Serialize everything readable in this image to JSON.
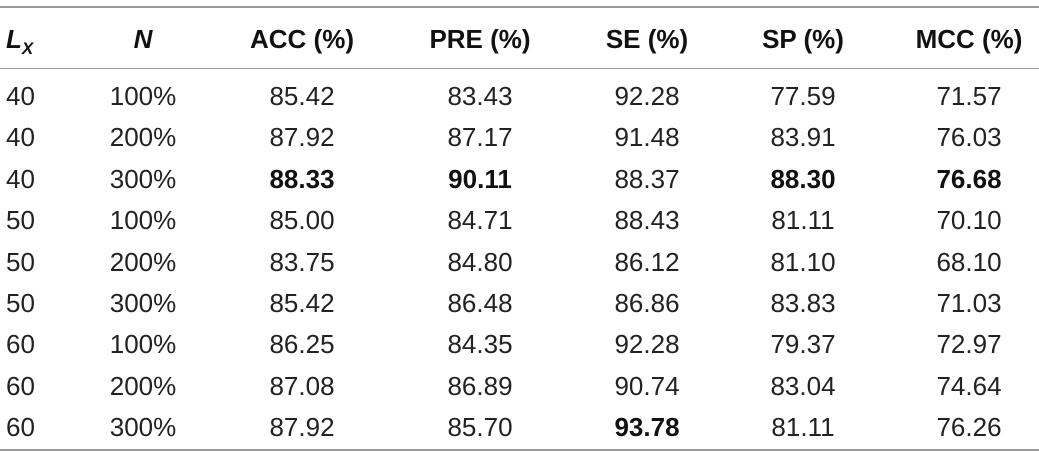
{
  "table": {
    "headers": {
      "lx_main": "L",
      "lx_sub": "X",
      "n": "N",
      "acc": "ACC (%)",
      "pre": "PRE (%)",
      "se": "SE (%)",
      "sp": "SP (%)",
      "mcc": "MCC (%)"
    },
    "rows": [
      {
        "lx": "40",
        "n": "100%",
        "acc": "85.42",
        "pre": "83.43",
        "se": "92.28",
        "sp": "77.59",
        "mcc": "71.57"
      },
      {
        "lx": "40",
        "n": "200%",
        "acc": "87.92",
        "pre": "87.17",
        "se": "91.48",
        "sp": "83.91",
        "mcc": "76.03"
      },
      {
        "lx": "40",
        "n": "300%",
        "acc": "88.33",
        "pre": "90.11",
        "se": "88.37",
        "sp": "88.30",
        "mcc": "76.68"
      },
      {
        "lx": "50",
        "n": "100%",
        "acc": "85.00",
        "pre": "84.71",
        "se": "88.43",
        "sp": "81.11",
        "mcc": "70.10"
      },
      {
        "lx": "50",
        "n": "200%",
        "acc": "83.75",
        "pre": "84.80",
        "se": "86.12",
        "sp": "81.10",
        "mcc": "68.10"
      },
      {
        "lx": "50",
        "n": "300%",
        "acc": "85.42",
        "pre": "86.48",
        "se": "86.86",
        "sp": "83.83",
        "mcc": "71.03"
      },
      {
        "lx": "60",
        "n": "100%",
        "acc": "86.25",
        "pre": "84.35",
        "se": "92.28",
        "sp": "79.37",
        "mcc": "72.97"
      },
      {
        "lx": "60",
        "n": "200%",
        "acc": "87.08",
        "pre": "86.89",
        "se": "90.74",
        "sp": "83.04",
        "mcc": "74.64"
      },
      {
        "lx": "60",
        "n": "300%",
        "acc": "87.92",
        "pre": "85.70",
        "se": "93.78",
        "sp": "81.11",
        "mcc": "76.26"
      }
    ],
    "bold_cells": [
      {
        "row": 2,
        "col": "acc"
      },
      {
        "row": 2,
        "col": "pre"
      },
      {
        "row": 2,
        "col": "sp"
      },
      {
        "row": 2,
        "col": "mcc"
      },
      {
        "row": 8,
        "col": "se"
      }
    ]
  }
}
